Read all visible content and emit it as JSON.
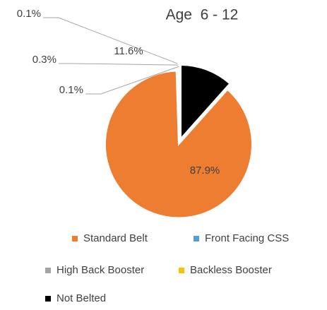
{
  "chart_data": {
    "type": "pie",
    "title": "Age  6 - 12",
    "categories": [
      "Standard Belt",
      "Front Facing CSS",
      "High Back Booster",
      "Backless Booster",
      "Not Belted"
    ],
    "values": [
      87.9,
      0.1,
      0.3,
      0.1,
      11.6
    ],
    "value_labels": [
      "87.9%",
      "0.1%",
      "0.3%",
      "0.1%",
      "11.6%"
    ],
    "colors": [
      "#ed7d31",
      "#5b9bd5",
      "#a5a5a5",
      "#ffc000",
      "#000000"
    ],
    "legend": "bottom"
  }
}
